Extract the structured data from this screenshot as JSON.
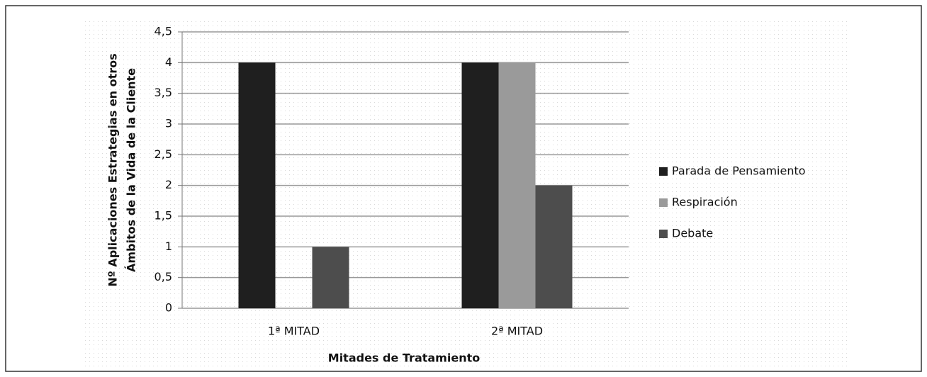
{
  "chart_data": {
    "type": "bar",
    "categories": [
      "1ª MITAD",
      "2ª MITAD"
    ],
    "series": [
      {
        "name": "Parada de Pensamiento",
        "color": "#1f1f1f",
        "values": [
          4,
          4
        ]
      },
      {
        "name": "Respiración",
        "color": "#9a9a9a",
        "values": [
          0,
          4
        ]
      },
      {
        "name": "Debate",
        "color": "#4d4d4d",
        "values": [
          1,
          2
        ]
      }
    ],
    "ylim": [
      0,
      4.5
    ],
    "yticks": [
      0,
      {
        "value": 0.5,
        "label": "0,5"
      },
      1,
      {
        "value": 1.5,
        "label": "1,5"
      },
      2,
      {
        "value": 2.5,
        "label": "2,5"
      },
      3,
      {
        "value": 3.5,
        "label": "3,5"
      },
      4,
      {
        "value": 4.5,
        "label": "4,5"
      }
    ],
    "y_label": [
      "Nº Aplicaciones Estrategias en otros",
      "Ámbitos de la Vida de la Cliente"
    ],
    "x_label": "Mitades de Tratamiento",
    "grid": true,
    "legend": "right"
  }
}
